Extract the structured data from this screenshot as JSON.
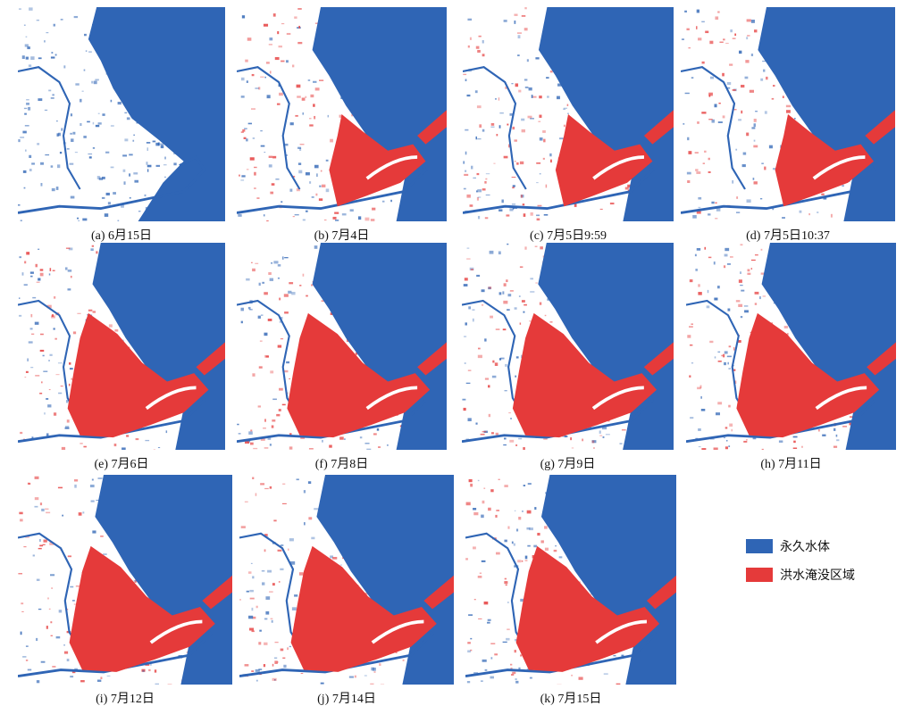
{
  "panels": [
    {
      "caption": "(a) 6月15日"
    },
    {
      "caption": "(b) 7月4日"
    },
    {
      "caption": "(c) 7月5日9:59"
    },
    {
      "caption": "(d) 7月5日10:37"
    },
    {
      "caption": "(e) 7月6日"
    },
    {
      "caption": "(f) 7月8日"
    },
    {
      "caption": "(g) 7月9日"
    },
    {
      "caption": "(h) 7月11日"
    },
    {
      "caption": "(i) 7月12日"
    },
    {
      "caption": "(j) 7月14日"
    },
    {
      "caption": "(k) 7月15日"
    }
  ],
  "legend": [
    {
      "label": "永久水体",
      "color": "#2f65b5"
    },
    {
      "label": "洪水淹没区域",
      "color": "#e53a3a"
    }
  ]
}
